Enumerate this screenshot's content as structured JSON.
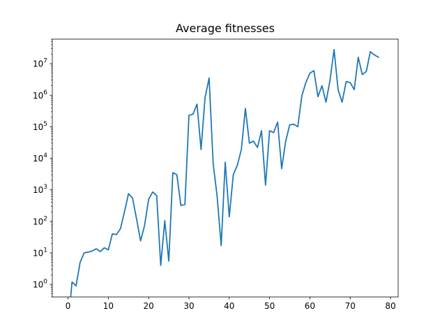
{
  "chart_data": {
    "type": "line",
    "title": "Average fitnesses",
    "xlabel": "",
    "ylabel": "",
    "yscale": "log",
    "xlim": [
      -3.9,
      81.9
    ],
    "ylim": [
      0.4,
      60000000
    ],
    "x_ticks": [
      0,
      10,
      20,
      30,
      40,
      50,
      60,
      70,
      80
    ],
    "x_tick_labels": [
      "0",
      "10",
      "20",
      "30",
      "40",
      "50",
      "60",
      "70",
      "80"
    ],
    "y_ticks": [
      1,
      10,
      100,
      1000,
      10000,
      100000,
      1000000,
      10000000
    ],
    "y_tick_labels": [
      {
        "base": "10",
        "exp": "0"
      },
      {
        "base": "10",
        "exp": "1"
      },
      {
        "base": "10",
        "exp": "2"
      },
      {
        "base": "10",
        "exp": "3"
      },
      {
        "base": "10",
        "exp": "4"
      },
      {
        "base": "10",
        "exp": "5"
      },
      {
        "base": "10",
        "exp": "6"
      },
      {
        "base": "10",
        "exp": "7"
      }
    ],
    "grid": false,
    "legend": false,
    "series": [
      {
        "color": "#1f77b4",
        "x": [
          0,
          1,
          2,
          3,
          4,
          5,
          6,
          7,
          8,
          9,
          10,
          11,
          12,
          13,
          14,
          15,
          16,
          17,
          18,
          19,
          20,
          21,
          22,
          23,
          24,
          25,
          26,
          27,
          28,
          29,
          30,
          31,
          32,
          33,
          34,
          35,
          36,
          37,
          38,
          39,
          40,
          41,
          42,
          43,
          44,
          45,
          46,
          47,
          48,
          49,
          50,
          51,
          52,
          53,
          54,
          55,
          56,
          57,
          58,
          59,
          60,
          61,
          62,
          63,
          64,
          65,
          66,
          67,
          68,
          69,
          70,
          71,
          72,
          73,
          74,
          75,
          76,
          77
        ],
        "y": [
          0.05,
          1.2,
          0.9,
          5,
          10,
          10.5,
          11.5,
          13.5,
          11,
          14.5,
          12.5,
          40,
          38,
          58,
          200,
          750,
          550,
          120,
          24,
          75,
          500,
          850,
          650,
          4,
          105,
          5.5,
          3500,
          3000,
          320,
          340,
          230000,
          250000,
          520000,
          19000,
          850000,
          3500000,
          7000,
          600,
          17,
          7500,
          140,
          3000,
          6000,
          19000,
          380000,
          30000,
          35000,
          22000,
          75000,
          1400,
          75000,
          65000,
          140000,
          4700,
          35000,
          115000,
          120000,
          100000,
          950000,
          2500000,
          5000000,
          6000000,
          900000,
          2000000,
          600000,
          3000000,
          28000000,
          1500000,
          600000,
          2700000,
          2500000,
          1500000,
          16000000,
          4500000,
          5700000,
          24000000,
          19000000,
          16000000
        ]
      }
    ]
  }
}
